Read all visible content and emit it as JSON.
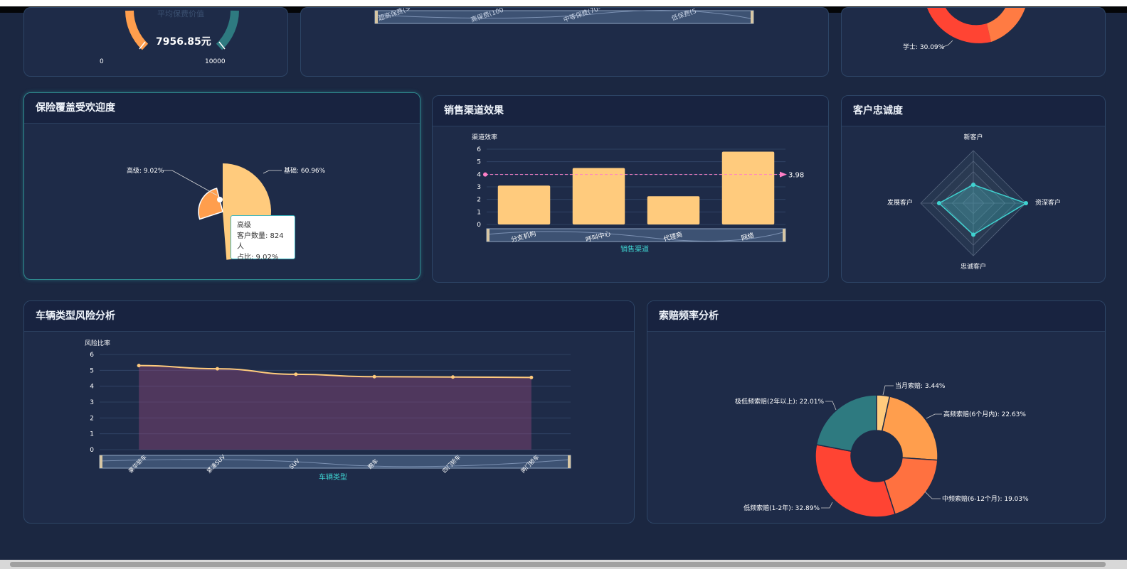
{
  "colors": {
    "accent": "#3fd2d0",
    "gold": "#ffcb7d",
    "orange": "#ff9e4d",
    "red": "#ff4433",
    "teal": "#2e7a80",
    "text": "#e6ecf5"
  },
  "gauge": {
    "label": "平均保费价值",
    "value": "7956.85元",
    "min": "0",
    "max": "10000"
  },
  "education": {
    "label": "学士: 30.09%"
  },
  "top_middle": {
    "labels": [
      "超高保费(>",
      "高保费(100",
      "中等保费(70-",
      "低保费(5"
    ]
  },
  "coverage": {
    "title": "保险覆盖受欢迎度",
    "labels": {
      "basic": "基础: 60.96%",
      "premium": "高级: 9.02%"
    },
    "tooltip": {
      "name": "高级",
      "count": "客户数量: 824人",
      "ratio": "占比: 9.02%"
    },
    "chart_data": {
      "type": "pie",
      "slices": [
        {
          "name": "基础",
          "value": 60.96
        },
        {
          "name": "高级",
          "value": 9.02
        }
      ]
    }
  },
  "channel": {
    "title": "销售渠道效果",
    "ylabel": "渠道效率",
    "xlabel": "销售渠道",
    "avg_label": "3.98",
    "yticks": [
      "0",
      "1",
      "2",
      "3",
      "4",
      "5",
      "6"
    ],
    "chart_data": {
      "type": "bar",
      "categories": [
        "分支机构",
        "呼叫中心",
        "代理商",
        "网络"
      ],
      "values": [
        3.1,
        4.5,
        2.25,
        5.8
      ],
      "markline": 3.98,
      "ylim": [
        0,
        6
      ]
    }
  },
  "loyalty": {
    "title": "客户忠诚度",
    "indicators": [
      "新客户",
      "资深客户",
      "忠诚客户",
      "发展客户"
    ],
    "chart_data": {
      "type": "radar",
      "indicators": [
        "新客户",
        "资深客户",
        "忠诚客户",
        "发展客户"
      ],
      "values": [
        0.35,
        1.0,
        0.6,
        0.65
      ]
    }
  },
  "vehicle": {
    "title": "车辆类型风险分析",
    "ylabel": "风险比率",
    "xlabel": "车辆类型",
    "yticks": [
      "0",
      "1",
      "2",
      "3",
      "4",
      "5",
      "6"
    ],
    "categories": [
      "豪华轿车",
      "紧凑SUV",
      "SUV",
      "跑车",
      "四门轿车",
      "两门轿车"
    ],
    "chart_data": {
      "type": "area",
      "categories": [
        "豪华轿车",
        "紧凑SUV",
        "SUV",
        "跑车",
        "四门轿车",
        "两门轿车"
      ],
      "values": [
        5.3,
        5.1,
        4.75,
        4.6,
        4.58,
        4.55
      ],
      "ylim": [
        0,
        6
      ]
    }
  },
  "claims": {
    "title": "索赔频率分析",
    "labels": [
      "当月索赔: 3.44%",
      "高频索赔(6个月内): 22.63%",
      "中频索赔(6-12个月): 19.03%",
      "低频索赔(1-2年): 32.89%",
      "极低频索赔(2年以上): 22.01%"
    ],
    "chart_data": {
      "type": "pie",
      "slices": [
        {
          "name": "当月索赔",
          "value": 3.44
        },
        {
          "name": "高频索赔(6个月内)",
          "value": 22.63
        },
        {
          "name": "中频索赔(6-12个月)",
          "value": 19.03
        },
        {
          "name": "低频索赔(1-2年)",
          "value": 32.89
        },
        {
          "name": "极低频索赔(2年以上)",
          "value": 22.01
        }
      ]
    }
  }
}
